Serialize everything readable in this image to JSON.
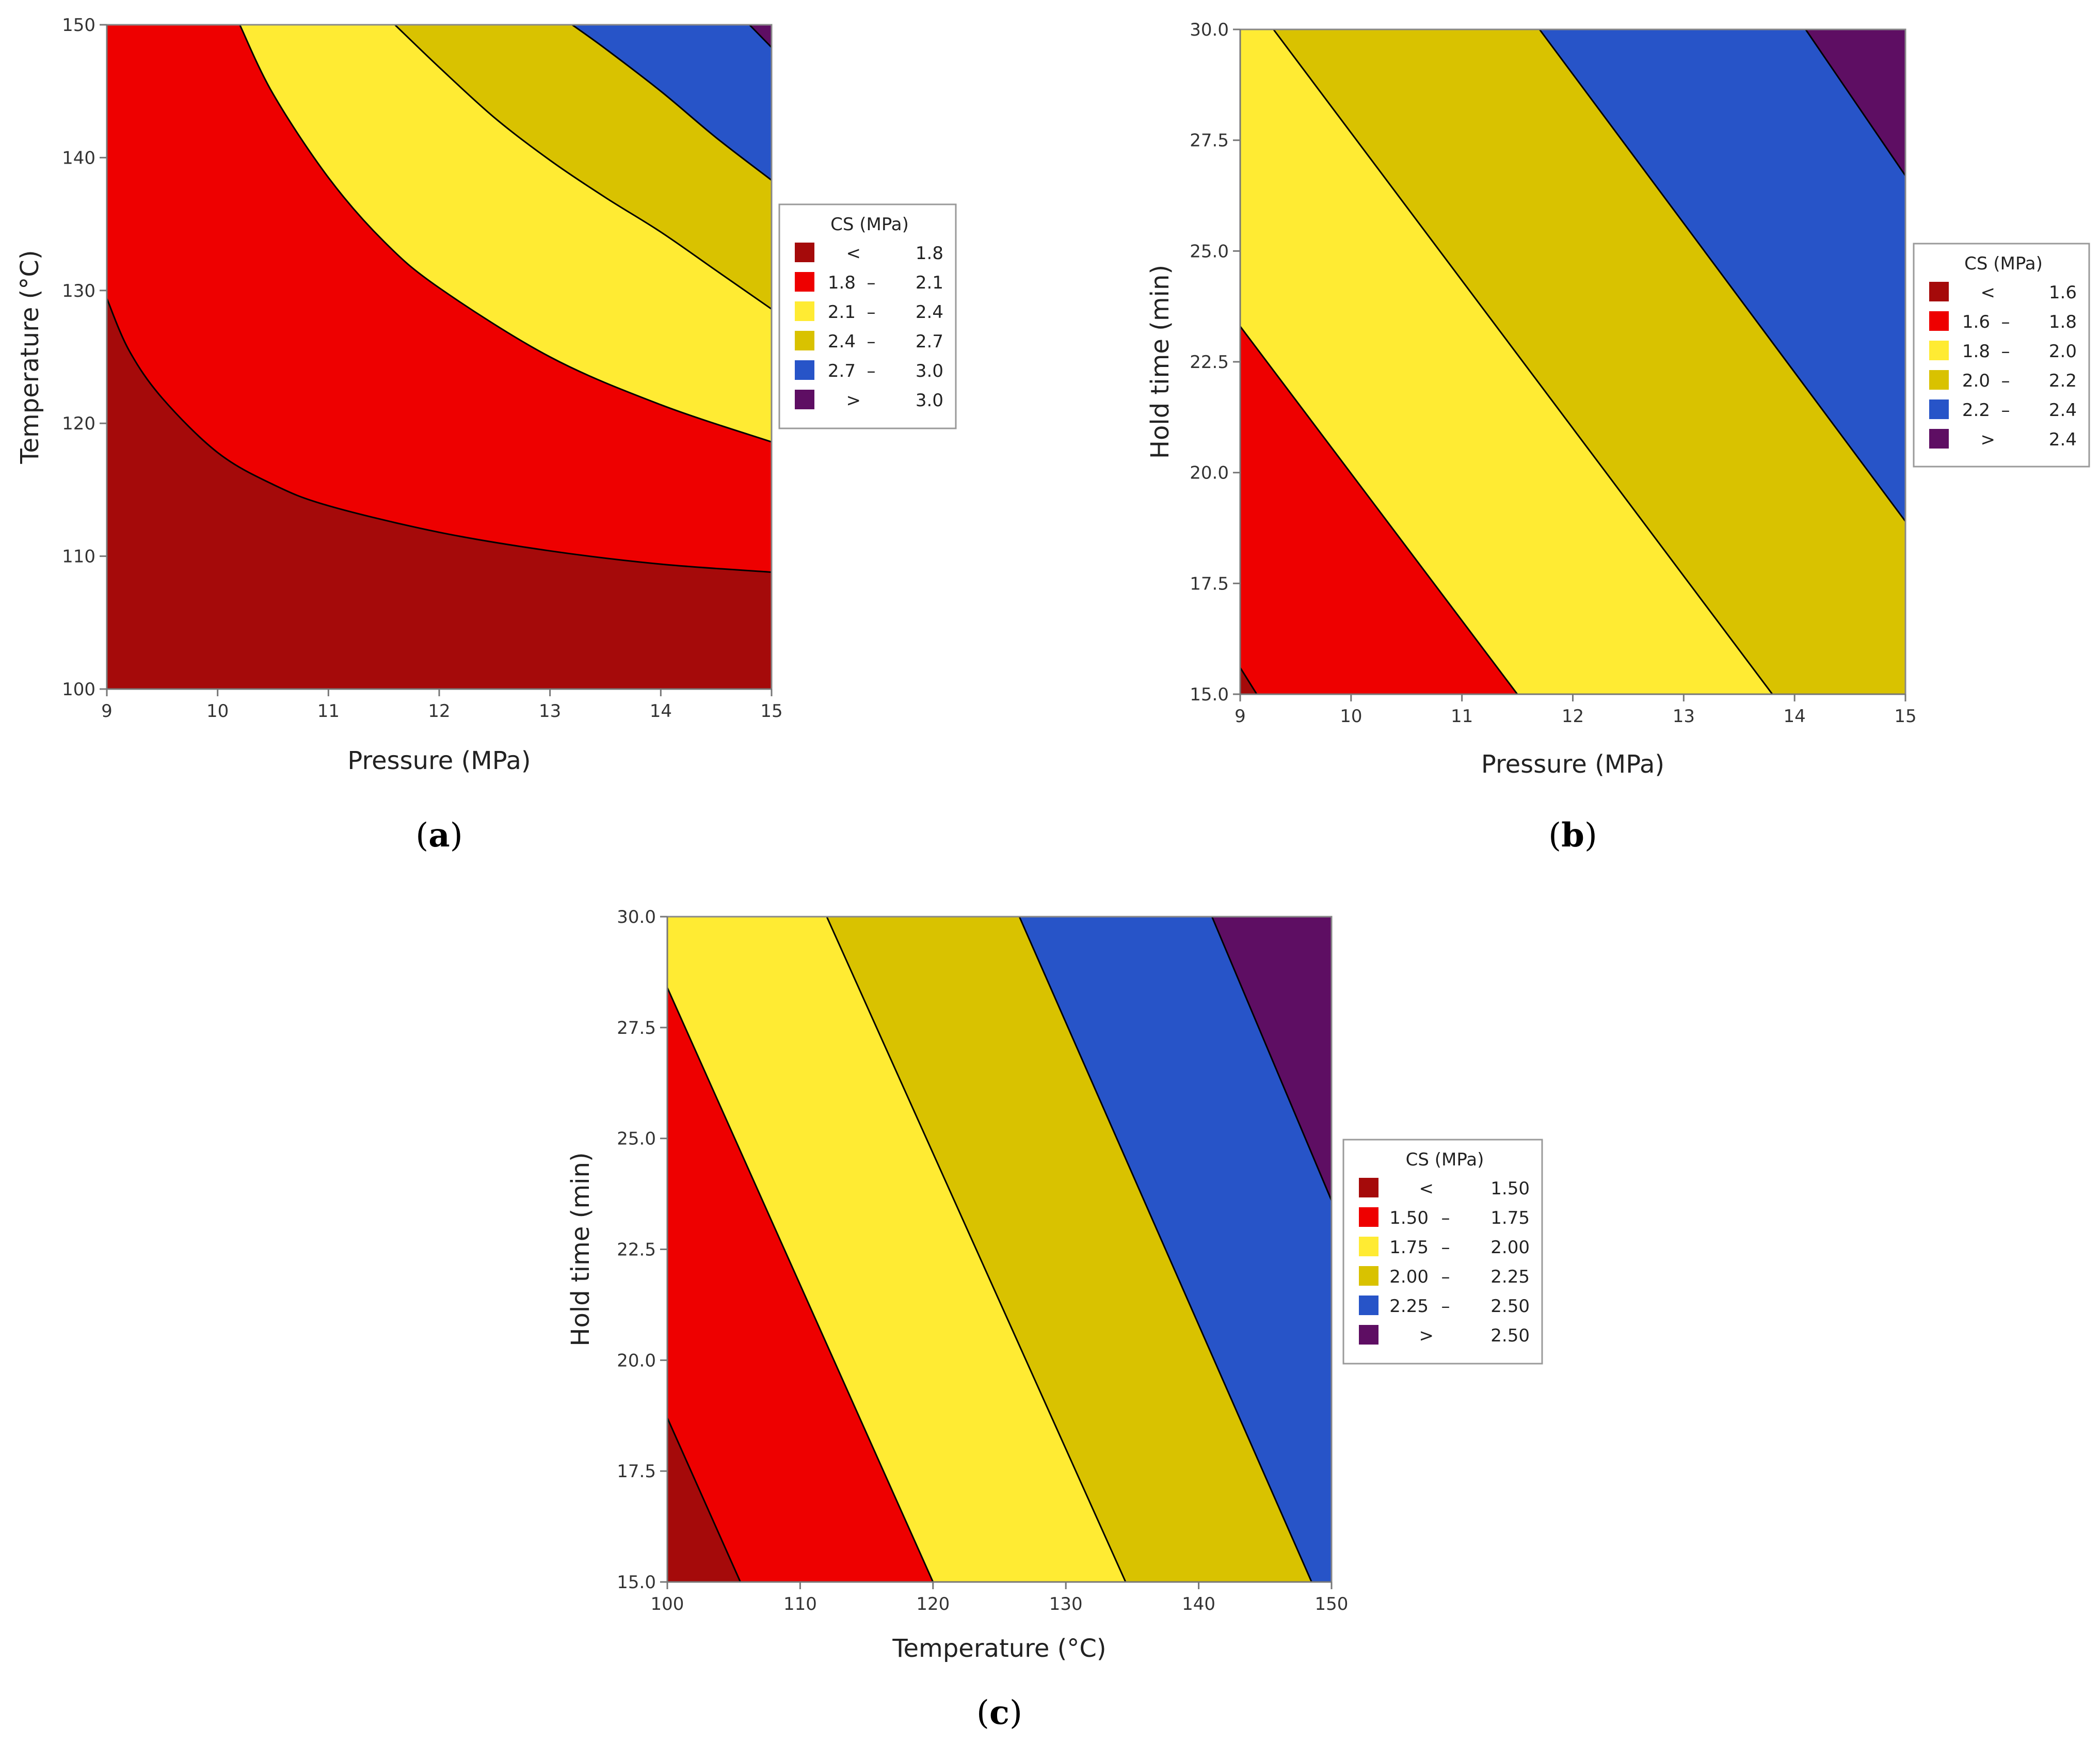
{
  "chart_data": [
    {
      "id": "a",
      "type": "contour",
      "panel_label": "a",
      "xlabel": "Pressure (MPa)",
      "ylabel": "Temperature (°C)",
      "xlim": [
        9,
        15
      ],
      "ylim": [
        100,
        150
      ],
      "xticks": [
        "9",
        "10",
        "11",
        "12",
        "13",
        "14",
        "15"
      ],
      "yticks": [
        "100",
        "110",
        "120",
        "130",
        "140",
        "150"
      ],
      "contours": [
        {
          "level": 1.8,
          "points": [
            [
              9,
              129.4
            ],
            [
              9.2,
              125.5
            ],
            [
              9.5,
              121.9
            ],
            [
              10,
              117.8
            ],
            [
              10.5,
              115.4
            ],
            [
              11,
              113.8
            ],
            [
              12,
              111.8
            ],
            [
              13,
              110.4
            ],
            [
              14,
              109.4
            ],
            [
              15,
              108.8
            ]
          ]
        },
        {
          "level": 2.1,
          "points": [
            [
              10.2,
              150
            ],
            [
              10.5,
              144.8
            ],
            [
              11,
              138.5
            ],
            [
              11.5,
              133.7
            ],
            [
              12,
              130.2
            ],
            [
              13,
              125
            ],
            [
              14,
              121.4
            ],
            [
              15,
              118.6
            ]
          ]
        },
        {
          "level": 2.4,
          "points": [
            [
              11.6,
              150
            ],
            [
              12,
              146.8
            ],
            [
              12.5,
              143
            ],
            [
              13,
              139.8
            ],
            [
              13.5,
              137
            ],
            [
              14,
              134.4
            ],
            [
              14.5,
              131.5
            ],
            [
              15,
              128.6
            ]
          ]
        },
        {
          "level": 2.7,
          "points": [
            [
              13.2,
              150
            ],
            [
              13.5,
              148.2
            ],
            [
              14,
              145
            ],
            [
              14.5,
              141.5
            ],
            [
              15,
              138.3
            ]
          ]
        },
        {
          "level": 3.0,
          "points": [
            [
              14.8,
              150
            ],
            [
              15,
              148.3
            ]
          ]
        }
      ],
      "legend": {
        "title": "CS (MPa)",
        "entries": [
          {
            "color": "#a50a0a",
            "low": "<",
            "high": "1.8"
          },
          {
            "color": "#ee0000",
            "low": "1.8",
            "high": "2.1"
          },
          {
            "color": "#ffeb33",
            "low": "2.1",
            "high": "2.4"
          },
          {
            "color": "#d9c200",
            "low": "2.4",
            "high": "2.7"
          },
          {
            "color": "#2754c8",
            "low": "2.7",
            "high": "3.0"
          },
          {
            "color": "#5e0e63",
            "low": ">",
            "high": "3.0"
          }
        ]
      }
    },
    {
      "id": "b",
      "type": "contour",
      "panel_label": "b",
      "xlabel": "Pressure (MPa)",
      "ylabel": "Hold time (min)",
      "xlim": [
        9,
        15
      ],
      "ylim": [
        15,
        30
      ],
      "xticks": [
        "9",
        "10",
        "11",
        "12",
        "13",
        "14",
        "15"
      ],
      "yticks": [
        "15.0",
        "17.5",
        "20.0",
        "22.5",
        "25.0",
        "27.5",
        "30.0"
      ],
      "contours": [
        {
          "level": 1.6,
          "points": [
            [
              9,
              15.6
            ],
            [
              9.15,
              15
            ]
          ]
        },
        {
          "level": 1.8,
          "points": [
            [
              9,
              23.3
            ],
            [
              11.5,
              15
            ]
          ]
        },
        {
          "level": 2.0,
          "points": [
            [
              9.3,
              30
            ],
            [
              13.8,
              15
            ]
          ]
        },
        {
          "level": 2.2,
          "points": [
            [
              11.7,
              30
            ],
            [
              15,
              18.9
            ]
          ]
        },
        {
          "level": 2.4,
          "points": [
            [
              14.1,
              30
            ],
            [
              15,
              26.7
            ]
          ]
        }
      ],
      "legend": {
        "title": "CS (MPa)",
        "entries": [
          {
            "color": "#a50a0a",
            "low": "<",
            "high": "1.6"
          },
          {
            "color": "#ee0000",
            "low": "1.6",
            "high": "1.8"
          },
          {
            "color": "#ffeb33",
            "low": "1.8",
            "high": "2.0"
          },
          {
            "color": "#d9c200",
            "low": "2.0",
            "high": "2.2"
          },
          {
            "color": "#2754c8",
            "low": "2.2",
            "high": "2.4"
          },
          {
            "color": "#5e0e63",
            "low": ">",
            "high": "2.4"
          }
        ]
      }
    },
    {
      "id": "c",
      "type": "contour",
      "panel_label": "c",
      "xlabel": "Temperature (°C)",
      "ylabel": "Hold time (min)",
      "xlim": [
        100,
        150
      ],
      "ylim": [
        15,
        30
      ],
      "xticks": [
        "100",
        "110",
        "120",
        "130",
        "140",
        "150"
      ],
      "yticks": [
        "15.0",
        "17.5",
        "20.0",
        "22.5",
        "25.0",
        "27.5",
        "30.0"
      ],
      "contours": [
        {
          "level": 1.5,
          "points": [
            [
              100,
              18.7
            ],
            [
              105.5,
              15
            ]
          ]
        },
        {
          "level": 1.75,
          "points": [
            [
              100,
              28.4
            ],
            [
              120,
              15
            ]
          ]
        },
        {
          "level": 2.0,
          "points": [
            [
              112,
              30
            ],
            [
              134.5,
              15
            ]
          ]
        },
        {
          "level": 2.25,
          "points": [
            [
              126.5,
              30
            ],
            [
              148.5,
              15
            ]
          ]
        },
        {
          "level": 2.5,
          "points": [
            [
              141,
              30
            ],
            [
              150,
              23.6
            ]
          ]
        }
      ],
      "legend": {
        "title": "CS (MPa)",
        "entries": [
          {
            "color": "#a50a0a",
            "low": "<",
            "high": "1.50"
          },
          {
            "color": "#ee0000",
            "low": "1.50",
            "high": "1.75"
          },
          {
            "color": "#ffeb33",
            "low": "1.75",
            "high": "2.00"
          },
          {
            "color": "#d9c200",
            "low": "2.00",
            "high": "2.25"
          },
          {
            "color": "#2754c8",
            "low": "2.25",
            "high": "2.50"
          },
          {
            "color": "#5e0e63",
            "low": ">",
            "high": "2.50"
          }
        ]
      }
    }
  ],
  "band_colors": [
    "#a50a0a",
    "#ee0000",
    "#ffeb33",
    "#d9c200",
    "#2754c8",
    "#5e0e63"
  ],
  "legend_dash": "–"
}
